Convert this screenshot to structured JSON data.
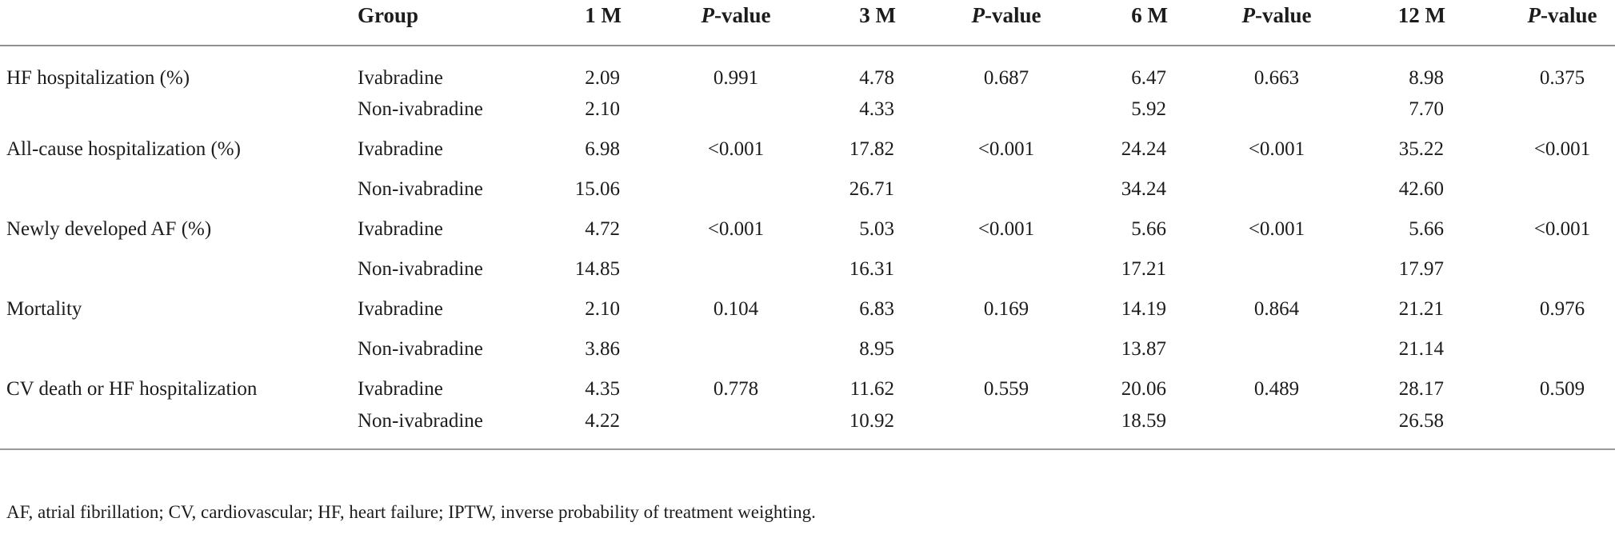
{
  "table": {
    "columns": [
      "",
      "Group",
      "1 M",
      "P-value",
      "3 M",
      "P-value",
      "6 M",
      "P-value",
      "12 M",
      "P-value"
    ],
    "rows": [
      {
        "outcome": "HF hospitalization (%)",
        "group": "Ivabradine",
        "m1": "2.09",
        "p1": "0.991",
        "m3": "4.78",
        "p2": "0.687",
        "m6": "6.47",
        "p3": "0.663",
        "m12": "8.98",
        "p4": "0.375"
      },
      {
        "outcome": "",
        "group": "Non-ivabradine",
        "m1": "2.10",
        "p1": "",
        "m3": "4.33",
        "p2": "",
        "m6": "5.92",
        "p3": "",
        "m12": "7.70",
        "p4": ""
      },
      {
        "outcome": "All-cause hospitalization (%)",
        "group": "Ivabradine",
        "m1": "6.98",
        "p1": "<0.001",
        "m3": "17.82",
        "p2": "<0.001",
        "m6": "24.24",
        "p3": "<0.001",
        "m12": "35.22",
        "p4": "<0.001"
      },
      {
        "outcome": "",
        "group": "Non-ivabradine",
        "m1": "15.06",
        "p1": "",
        "m3": "26.71",
        "p2": "",
        "m6": "34.24",
        "p3": "",
        "m12": "42.60",
        "p4": ""
      },
      {
        "outcome": "Newly developed AF (%)",
        "group": "Ivabradine",
        "m1": "4.72",
        "p1": "<0.001",
        "m3": "5.03",
        "p2": "<0.001",
        "m6": "5.66",
        "p3": "<0.001",
        "m12": "5.66",
        "p4": "<0.001"
      },
      {
        "outcome": "",
        "group": "Non-ivabradine",
        "m1": "14.85",
        "p1": "",
        "m3": "16.31",
        "p2": "",
        "m6": "17.21",
        "p3": "",
        "m12": "17.97",
        "p4": ""
      },
      {
        "outcome": "Mortality",
        "group": "Ivabradine",
        "m1": "2.10",
        "p1": "0.104",
        "m3": "6.83",
        "p2": "0.169",
        "m6": "14.19",
        "p3": "0.864",
        "m12": "21.21",
        "p4": "0.976"
      },
      {
        "outcome": "",
        "group": "Non-ivabradine",
        "m1": "3.86",
        "p1": "",
        "m3": "8.95",
        "p2": "",
        "m6": "13.87",
        "p3": "",
        "m12": "21.14",
        "p4": ""
      },
      {
        "outcome": "CV death or HF hospitalization",
        "group": "Ivabradine",
        "m1": "4.35",
        "p1": "0.778",
        "m3": "11.62",
        "p2": "0.559",
        "m6": "20.06",
        "p3": "0.489",
        "m12": "28.17",
        "p4": "0.509"
      },
      {
        "outcome": "",
        "group": "Non-ivabradine",
        "m1": "4.22",
        "p1": "",
        "m3": "10.92",
        "p2": "",
        "m6": "18.59",
        "p3": "",
        "m12": "26.58",
        "p4": ""
      }
    ],
    "footnote": "AF, atrial fibrillation; CV, cardiovascular; HF, heart failure; IPTW, inverse probability of treatment weighting."
  }
}
